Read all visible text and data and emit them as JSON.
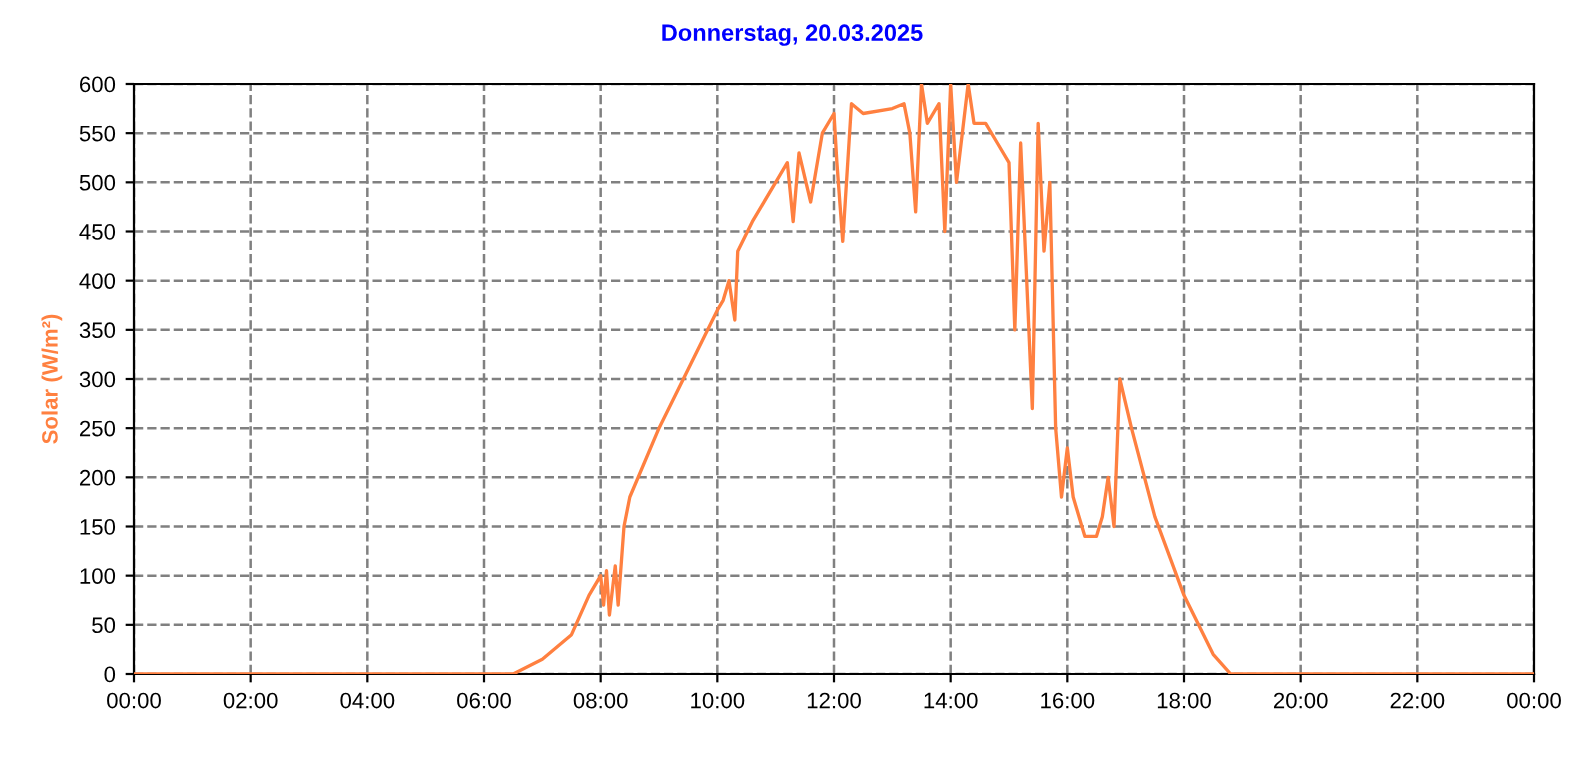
{
  "chart_data": {
    "type": "line",
    "title": "Donnerstag, 20.03.2025",
    "ylabel": "Solar (W/m²)",
    "series": [
      {
        "color": "#ff8040",
        "x": [
          0,
          6.5,
          7.0,
          7.5,
          7.8,
          8.0,
          8.05,
          8.1,
          8.15,
          8.25,
          8.3,
          8.4,
          8.5,
          9.0,
          9.5,
          10.0,
          10.1,
          10.2,
          10.3,
          10.35,
          10.6,
          11.0,
          11.2,
          11.3,
          11.4,
          11.6,
          11.8,
          12.0,
          12.05,
          12.15,
          12.3,
          12.5,
          13.0,
          13.2,
          13.3,
          13.4,
          13.5,
          13.6,
          13.8,
          13.9,
          14.0,
          14.1,
          14.3,
          14.4,
          14.6,
          14.8,
          15.0,
          15.1,
          15.2,
          15.4,
          15.5,
          15.6,
          15.7,
          15.8,
          15.9,
          16.0,
          16.1,
          16.3,
          16.5,
          16.6,
          16.7,
          16.8,
          16.9,
          17.1,
          17.5,
          18.0,
          18.5,
          18.8,
          24
        ],
        "values": [
          0,
          0,
          15,
          40,
          80,
          100,
          70,
          105,
          60,
          110,
          70,
          150,
          180,
          250,
          310,
          370,
          380,
          400,
          360,
          430,
          460,
          500,
          520,
          460,
          530,
          480,
          550,
          570,
          520,
          440,
          580,
          570,
          575,
          580,
          550,
          470,
          600,
          560,
          580,
          450,
          600,
          500,
          600,
          560,
          560,
          540,
          520,
          350,
          540,
          270,
          560,
          430,
          500,
          250,
          180,
          230,
          180,
          140,
          140,
          160,
          200,
          150,
          300,
          250,
          160,
          80,
          20,
          0,
          0
        ]
      }
    ],
    "xlim": [
      0,
      24
    ],
    "xticks": [
      {
        "value": 0,
        "label": "00:00"
      },
      {
        "value": 2,
        "label": "02:00"
      },
      {
        "value": 4,
        "label": "04:00"
      },
      {
        "value": 6,
        "label": "06:00"
      },
      {
        "value": 8,
        "label": "08:00"
      },
      {
        "value": 10,
        "label": "10:00"
      },
      {
        "value": 12,
        "label": "12:00"
      },
      {
        "value": 14,
        "label": "14:00"
      },
      {
        "value": 16,
        "label": "16:00"
      },
      {
        "value": 18,
        "label": "18:00"
      },
      {
        "value": 20,
        "label": "20:00"
      },
      {
        "value": 22,
        "label": "22:00"
      },
      {
        "value": 24,
        "label": "00:00"
      }
    ],
    "ylim": [
      0,
      600
    ],
    "yticks": [
      0,
      50,
      100,
      150,
      200,
      250,
      300,
      350,
      400,
      450,
      500,
      550,
      600
    ],
    "grid": true,
    "line_style": "solid",
    "legend": false
  }
}
